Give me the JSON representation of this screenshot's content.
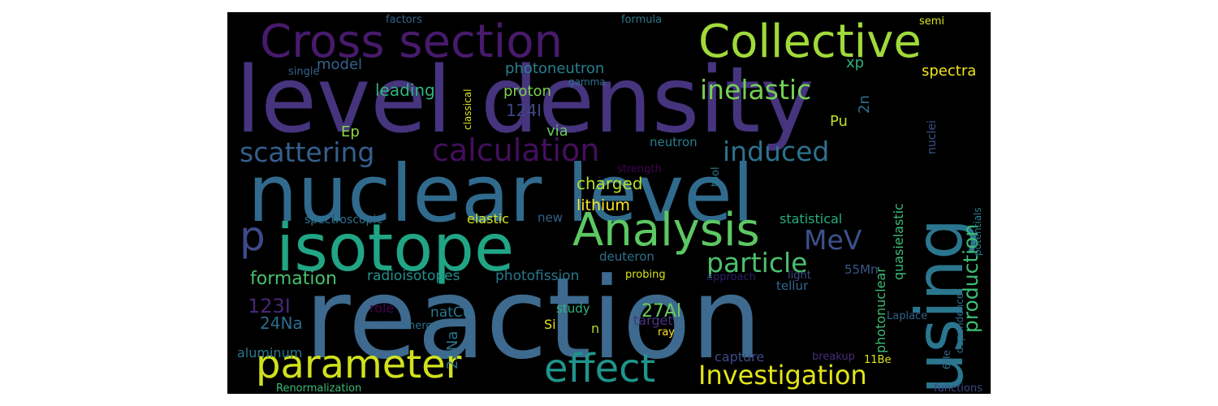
{
  "background": "#000000",
  "words": [
    {
      "text": "reaction",
      "color": "#3d6a8e"
    },
    {
      "text": "level density",
      "color": "#46347e"
    },
    {
      "text": "nuclear level",
      "color": "#306b8e"
    },
    {
      "text": "isotope",
      "color": "#21a585"
    },
    {
      "text": "using",
      "color": "#2a768e"
    },
    {
      "text": "Cross section",
      "color": "#481a6c"
    },
    {
      "text": "Collective",
      "color": "#a0da39"
    },
    {
      "text": "Analysis",
      "color": "#5cc863"
    },
    {
      "text": "parameter",
      "color": "#d0e11c"
    },
    {
      "text": "effect",
      "color": "#1f958b"
    },
    {
      "text": "Investigation",
      "color": "#e2e418"
    },
    {
      "text": "calculation",
      "color": "#440f5e"
    },
    {
      "text": "inelastic",
      "color": "#75d054"
    },
    {
      "text": "scattering",
      "color": "#355f8d"
    },
    {
      "text": "induced",
      "color": "#2c728e"
    },
    {
      "text": "particle",
      "color": "#4ac16d"
    },
    {
      "text": "p",
      "color": "#3e4989"
    },
    {
      "text": "MeV",
      "color": "#3b528b"
    },
    {
      "text": "production",
      "color": "#3dbc74"
    },
    {
      "text": "formation",
      "color": "#48c16e"
    },
    {
      "text": "charged",
      "color": "#b5de2b"
    },
    {
      "text": "leading",
      "color": "#2fb47c"
    },
    {
      "text": "photoneutron",
      "color": "#277f8e"
    },
    {
      "text": "proton",
      "color": "#7ad151"
    },
    {
      "text": "124I",
      "color": "#3f4788"
    },
    {
      "text": "via",
      "color": "#65cb5e"
    },
    {
      "text": "Ep",
      "color": "#8fd744"
    },
    {
      "text": "lithium",
      "color": "#fde725"
    },
    {
      "text": "neutron",
      "color": "#287c8e"
    },
    {
      "text": "Pu",
      "color": "#c2df23"
    },
    {
      "text": "2n",
      "color": "#2d708e"
    },
    {
      "text": "xp",
      "color": "#2db27d"
    },
    {
      "text": "spectra",
      "color": "#f1e51d"
    },
    {
      "text": "model",
      "color": "#34618d"
    },
    {
      "text": "single",
      "color": "#33638d"
    },
    {
      "text": "factors",
      "color": "#31668e"
    },
    {
      "text": "formula",
      "color": "#2a788e"
    },
    {
      "text": "gamma",
      "color": "#2e6f8e"
    },
    {
      "text": "classical",
      "color": "#dde318"
    },
    {
      "text": "semi",
      "color": "#dde318"
    },
    {
      "text": "elastic",
      "color": "#d8e219"
    },
    {
      "text": "new",
      "color": "#33638d"
    },
    {
      "text": "statistical",
      "color": "#27ad81"
    },
    {
      "text": "quasielastic",
      "color": "#3bbb75"
    },
    {
      "text": "nuclei",
      "color": "#3b528b"
    },
    {
      "text": "strength",
      "color": "#440154"
    },
    {
      "text": "tool",
      "color": "#297a8e"
    },
    {
      "text": "spectroscopic",
      "color": "#2c738e"
    },
    {
      "text": "radioisotopes",
      "color": "#21918c"
    },
    {
      "text": "photofission",
      "color": "#2a788e"
    },
    {
      "text": "deuteron",
      "color": "#2d708e"
    },
    {
      "text": "55Mn",
      "color": "#38588c"
    },
    {
      "text": "tellur",
      "color": "#31688e"
    },
    {
      "text": "123I",
      "color": "#482677"
    },
    {
      "text": "24Na",
      "color": "#2e6e8e"
    },
    {
      "text": "22Na",
      "color": "#2c738e"
    },
    {
      "text": "27Al",
      "color": "#6ccd5a"
    },
    {
      "text": "study",
      "color": "#2db27d"
    },
    {
      "text": "Si",
      "color": "#dde318"
    },
    {
      "text": "n",
      "color": "#addc30"
    },
    {
      "text": "target",
      "color": "#46337f"
    },
    {
      "text": "ray",
      "color": "#fde725"
    },
    {
      "text": "role",
      "color": "#440154"
    },
    {
      "text": "natCu",
      "color": "#2a788e"
    },
    {
      "text": "energy",
      "color": "#2d708e"
    },
    {
      "text": "aluminum",
      "color": "#2a768e"
    },
    {
      "text": "capture",
      "color": "#3e4989"
    },
    {
      "text": "probing",
      "color": "#dde318"
    },
    {
      "text": "approach",
      "color": "#2c1f6b"
    },
    {
      "text": "light",
      "color": "#3e4989"
    },
    {
      "text": "photonuclear",
      "color": "#3dbc74"
    },
    {
      "text": "Laplace",
      "color": "#33638d"
    },
    {
      "text": "breakup",
      "color": "#472d7b"
    },
    {
      "text": "11Be",
      "color": "#dde318"
    },
    {
      "text": "6He",
      "color": "#31688e"
    },
    {
      "text": "dependence",
      "color": "#2d708e"
    },
    {
      "text": "potentials",
      "color": "#277f8e"
    },
    {
      "text": "Renormalization",
      "color": "#3bbb75"
    },
    {
      "text": "functions",
      "color": "#3f4788"
    }
  ]
}
